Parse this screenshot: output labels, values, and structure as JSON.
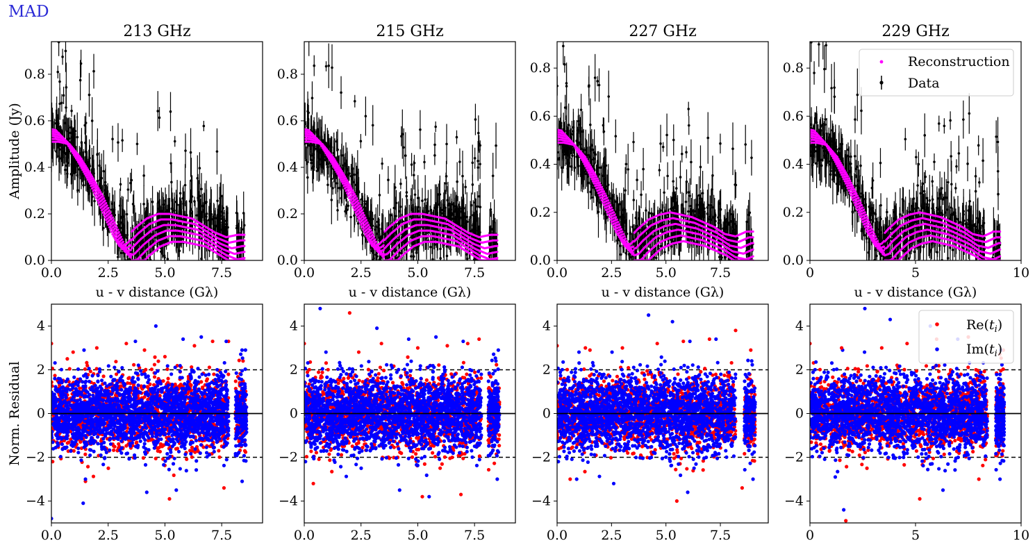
{
  "figure": {
    "tag": "MAD",
    "tag_color": "#2b2bd6"
  },
  "colors": {
    "data": "#000000",
    "reconstruction": "#ff00ff",
    "residual_real": "#ff0000",
    "residual_imag": "#0000ff"
  },
  "chart_data": [
    {
      "type": "scatter",
      "panel": "amplitude",
      "title": "213 GHz",
      "xlabel": "u - v distance (Gλ)",
      "ylabel": "Amplitude (Jy)",
      "xlim": [
        0,
        9.3
      ],
      "ylim": [
        0,
        0.94
      ],
      "xticks": [
        "0.0",
        "2.5",
        "5.0",
        "7.5"
      ],
      "yticks": [
        "0.0",
        "0.2",
        "0.4",
        "0.6",
        "0.8"
      ],
      "series": [
        {
          "name": "Reconstruction",
          "role": "reconstruction",
          "x": [
            0,
            0.5,
            1.0,
            1.5,
            2.0,
            2.5,
            3.0,
            3.3,
            3.6,
            4.0,
            4.5,
            5.0,
            5.5,
            6.0,
            6.5,
            7.0,
            7.5,
            8.0,
            8.5
          ],
          "y": [
            0.54,
            0.53,
            0.47,
            0.39,
            0.3,
            0.19,
            0.08,
            0.03,
            0.04,
            0.08,
            0.12,
            0.14,
            0.14,
            0.13,
            0.12,
            0.09,
            0.06,
            0.04,
            0.05
          ]
        },
        {
          "name": "Data",
          "role": "data",
          "x": [
            0,
            0.5,
            1.0,
            1.5,
            2.0,
            2.5,
            3.0,
            3.5,
            4.0,
            4.5,
            5.0,
            5.5,
            6.0,
            6.5,
            7.0,
            7.5,
            8.2,
            8.5
          ],
          "y": [
            0.55,
            0.5,
            0.46,
            0.4,
            0.32,
            0.22,
            0.12,
            0.06,
            0.1,
            0.13,
            0.15,
            0.16,
            0.17,
            0.18,
            0.15,
            0.1,
            0.08,
            0.06
          ]
        }
      ]
    },
    {
      "type": "scatter",
      "panel": "amplitude",
      "title": "215 GHz",
      "xlabel": "u - v distance (Gλ)",
      "ylabel": "",
      "xlim": [
        0,
        9.3
      ],
      "ylim": [
        0,
        0.94
      ],
      "xticks": [
        "0.0",
        "2.5",
        "5.0",
        "7.5"
      ],
      "yticks": [
        "0.0",
        "0.2",
        "0.4",
        "0.6",
        "0.8"
      ],
      "series": [
        {
          "name": "Reconstruction",
          "role": "reconstruction",
          "x": [
            0,
            0.5,
            1.0,
            1.5,
            2.0,
            2.5,
            3.0,
            3.3,
            3.6,
            4.0,
            4.5,
            5.0,
            5.5,
            6.0,
            6.5,
            7.0,
            7.5,
            8.0,
            8.5
          ],
          "y": [
            0.54,
            0.53,
            0.47,
            0.39,
            0.3,
            0.19,
            0.08,
            0.03,
            0.04,
            0.08,
            0.12,
            0.14,
            0.14,
            0.13,
            0.12,
            0.09,
            0.06,
            0.04,
            0.05
          ]
        },
        {
          "name": "Data",
          "role": "data",
          "x": [
            0,
            0.5,
            1.0,
            1.5,
            2.0,
            2.5,
            3.0,
            3.5,
            4.0,
            4.5,
            5.0,
            5.5,
            6.0,
            6.5,
            7.0,
            7.5,
            8.2,
            8.5
          ],
          "y": [
            0.54,
            0.5,
            0.46,
            0.4,
            0.32,
            0.22,
            0.12,
            0.06,
            0.1,
            0.13,
            0.15,
            0.16,
            0.17,
            0.18,
            0.15,
            0.1,
            0.08,
            0.06
          ]
        }
      ]
    },
    {
      "type": "scatter",
      "panel": "amplitude",
      "title": "227 GHz",
      "xlabel": "u - v distance (Gλ)",
      "ylabel": "",
      "xlim": [
        0,
        9.7
      ],
      "ylim": [
        0,
        0.91
      ],
      "xticks": [
        "0.0",
        "2.5",
        "5.0",
        "7.5"
      ],
      "yticks": [
        "0.0",
        "0.2",
        "0.4",
        "0.6",
        "0.8"
      ],
      "series": [
        {
          "name": "Reconstruction",
          "role": "reconstruction",
          "x": [
            0,
            0.5,
            1.0,
            1.5,
            2.0,
            2.5,
            3.0,
            3.4,
            3.7,
            4.0,
            4.5,
            5.0,
            5.5,
            6.0,
            6.5,
            7.0,
            7.5,
            8.0,
            8.5,
            9.0
          ],
          "y": [
            0.52,
            0.51,
            0.46,
            0.38,
            0.29,
            0.19,
            0.09,
            0.03,
            0.04,
            0.07,
            0.11,
            0.13,
            0.14,
            0.13,
            0.12,
            0.1,
            0.08,
            0.05,
            0.04,
            0.06
          ]
        },
        {
          "name": "Data",
          "role": "data",
          "x": [
            0,
            0.5,
            1.0,
            1.5,
            2.0,
            2.5,
            3.0,
            3.5,
            4.0,
            4.5,
            5.0,
            5.5,
            6.0,
            6.5,
            7.0,
            7.5,
            8.0,
            8.8,
            9.0
          ],
          "y": [
            0.52,
            0.49,
            0.45,
            0.39,
            0.31,
            0.22,
            0.12,
            0.06,
            0.09,
            0.12,
            0.14,
            0.15,
            0.16,
            0.17,
            0.16,
            0.12,
            0.08,
            0.07,
            0.06
          ]
        }
      ]
    },
    {
      "type": "scatter",
      "panel": "amplitude",
      "title": "229 GHz",
      "xlabel": "u - v distance (Gλ)",
      "ylabel": "",
      "xlim": [
        0,
        10
      ],
      "ylim": [
        0,
        0.91
      ],
      "xticks": [
        "0",
        "5",
        "10"
      ],
      "yticks": [
        "0.0",
        "0.2",
        "0.4",
        "0.6",
        "0.8"
      ],
      "legend": {
        "placement": "upper right",
        "entries": [
          "Reconstruction",
          "Data"
        ]
      },
      "series": [
        {
          "name": "Reconstruction",
          "role": "reconstruction",
          "x": [
            0,
            0.5,
            1.0,
            1.5,
            2.0,
            2.5,
            3.0,
            3.4,
            3.7,
            4.0,
            4.5,
            5.0,
            5.5,
            6.0,
            6.5,
            7.0,
            7.5,
            8.0,
            8.5,
            9.0
          ],
          "y": [
            0.52,
            0.51,
            0.46,
            0.38,
            0.29,
            0.19,
            0.09,
            0.03,
            0.04,
            0.07,
            0.11,
            0.13,
            0.14,
            0.13,
            0.12,
            0.1,
            0.08,
            0.05,
            0.04,
            0.06
          ]
        },
        {
          "name": "Data",
          "role": "data",
          "x": [
            0,
            0.5,
            1.0,
            1.5,
            2.0,
            2.5,
            3.0,
            3.5,
            4.0,
            4.5,
            5.0,
            5.5,
            6.0,
            6.5,
            7.0,
            7.5,
            8.0,
            8.8,
            9.0
          ],
          "y": [
            0.52,
            0.49,
            0.45,
            0.39,
            0.31,
            0.22,
            0.12,
            0.06,
            0.09,
            0.12,
            0.14,
            0.15,
            0.16,
            0.17,
            0.16,
            0.12,
            0.08,
            0.07,
            0.06
          ]
        }
      ]
    },
    {
      "type": "scatter",
      "panel": "residual",
      "title": "",
      "xlabel": "",
      "ylabel": "Norm. Residual",
      "xlim": [
        0,
        9.3
      ],
      "ylim": [
        -5,
        5
      ],
      "xticks": [
        "0.0",
        "2.5",
        "5.0",
        "7.5"
      ],
      "yticks": [
        "−4",
        "−2",
        "0",
        "2",
        "4"
      ],
      "reference_lines": {
        "solid": [
          0
        ],
        "dashed": [
          -2,
          2
        ]
      },
      "data_x_range": [
        0,
        7.8
      ],
      "gap": [
        7.9,
        8.1
      ],
      "tail": [
        8.1,
        8.6
      ],
      "series": [
        {
          "name": "Re(t_i)",
          "role": "residual_real",
          "x": [
            0.0,
            0.7,
            2.0,
            3.3,
            4.1,
            5.0,
            6.3,
            7.1,
            7.8,
            1.5,
            5.2,
            7.6
          ],
          "y": [
            3.2,
            2.5,
            3.0,
            3.2,
            2.9,
            2.6,
            3.1,
            3.3,
            3.3,
            -3.1,
            -3.9,
            -3.4
          ]
        },
        {
          "name": "Im(t_i)",
          "role": "residual_imag",
          "x": [
            0.0,
            1.4,
            3.7,
            4.6,
            5.8,
            6.6,
            7.7,
            1.5,
            4.2,
            5.5,
            8.4
          ],
          "y": [
            -4.8,
            -4.1,
            3.3,
            4.0,
            3.4,
            3.5,
            3.3,
            -3.0,
            -3.6,
            -3.5,
            -3.1
          ]
        }
      ]
    },
    {
      "type": "scatter",
      "panel": "residual",
      "title": "",
      "xlabel": "",
      "ylabel": "",
      "xlim": [
        0,
        9.3
      ],
      "ylim": [
        -5,
        5
      ],
      "xticks": [
        "0.0",
        "2.5",
        "5.0",
        "7.5"
      ],
      "yticks": [
        "4",
        "2",
        "0",
        "−2",
        "−4"
      ],
      "reference_lines": {
        "solid": [
          0
        ],
        "dashed": [
          -2,
          2
        ]
      },
      "data_x_range": [
        0,
        7.8
      ],
      "gap": [
        7.9,
        8.1
      ],
      "tail": [
        8.1,
        8.6
      ],
      "series": [
        {
          "name": "Re(t_i)",
          "role": "residual_real",
          "x": [
            0.0,
            2.0,
            3.4,
            5.0,
            6.3,
            7.2,
            7.7,
            0.4,
            5.2,
            6.9
          ],
          "y": [
            3.2,
            4.6,
            3.2,
            3.0,
            3.1,
            3.2,
            3.4,
            -3.2,
            -3.8,
            -3.7
          ]
        },
        {
          "name": "Im(t_i)",
          "role": "residual_imag",
          "x": [
            0.7,
            3.2,
            4.6,
            5.8,
            7.0,
            4.2,
            5.5,
            8.5
          ],
          "y": [
            4.8,
            3.9,
            3.4,
            3.5,
            3.3,
            -3.5,
            -3.8,
            -3.0
          ]
        }
      ]
    },
    {
      "type": "scatter",
      "panel": "residual",
      "title": "",
      "xlabel": "",
      "ylabel": "",
      "xlim": [
        0,
        9.7
      ],
      "ylim": [
        -5,
        5
      ],
      "xticks": [
        "0.0",
        "2.5",
        "5.0",
        "7.5"
      ],
      "yticks": [
        "4",
        "2",
        "0",
        "−2",
        "−4"
      ],
      "reference_lines": {
        "solid": [
          0
        ],
        "dashed": [
          -2,
          2
        ]
      },
      "data_x_range": [
        0,
        8.2
      ],
      "gap": [
        8.3,
        8.6
      ],
      "tail": [
        8.6,
        9.1
      ],
      "series": [
        {
          "name": "Re(t_i)",
          "role": "residual_real",
          "x": [
            0.0,
            1.3,
            3.0,
            4.6,
            5.8,
            7.0,
            8.2,
            0.6,
            5.5,
            8.5
          ],
          "y": [
            3.1,
            3.0,
            3.0,
            3.2,
            3.3,
            3.4,
            3.8,
            -3.0,
            -4.0,
            -3.4
          ]
        },
        {
          "name": "Im(t_i)",
          "role": "residual_imag",
          "x": [
            4.2,
            5.3,
            6.1,
            7.3,
            0.9,
            2.6,
            6.0,
            9.0
          ],
          "y": [
            4.5,
            4.2,
            3.3,
            3.4,
            -3.0,
            -3.2,
            -3.6,
            -3.0
          ]
        }
      ]
    },
    {
      "type": "scatter",
      "panel": "residual",
      "title": "",
      "xlabel": "",
      "ylabel": "",
      "xlim": [
        0,
        10
      ],
      "ylim": [
        -5,
        5
      ],
      "xticks": [
        "0",
        "5",
        "10"
      ],
      "yticks": [
        "4",
        "2",
        "0",
        "−2",
        "−4"
      ],
      "reference_lines": {
        "solid": [
          0
        ],
        "dashed": [
          -2,
          2
        ]
      },
      "data_x_range": [
        0,
        8.4
      ],
      "gap": [
        8.5,
        8.8
      ],
      "tail": [
        8.8,
        9.2
      ],
      "legend": {
        "placement": "upper right",
        "entries": [
          "Re(t_i)",
          "Im(t_i)"
        ]
      },
      "series": [
        {
          "name": "Re(t_i)",
          "role": "residual_real",
          "x": [
            0.0,
            1.5,
            3.4,
            4.6,
            6.0,
            7.5,
            1.7,
            5.2,
            8.0
          ],
          "y": [
            3.2,
            3.0,
            3.0,
            3.2,
            3.4,
            3.5,
            -4.9,
            -3.9,
            -3.0
          ]
        },
        {
          "name": "Im(t_i)",
          "role": "residual_imag",
          "x": [
            2.6,
            3.8,
            5.7,
            7.0,
            1.6,
            1.2,
            6.3,
            9.0
          ],
          "y": [
            4.8,
            4.3,
            4.0,
            3.4,
            -4.4,
            -2.9,
            -3.5,
            -3.0
          ]
        }
      ]
    }
  ]
}
